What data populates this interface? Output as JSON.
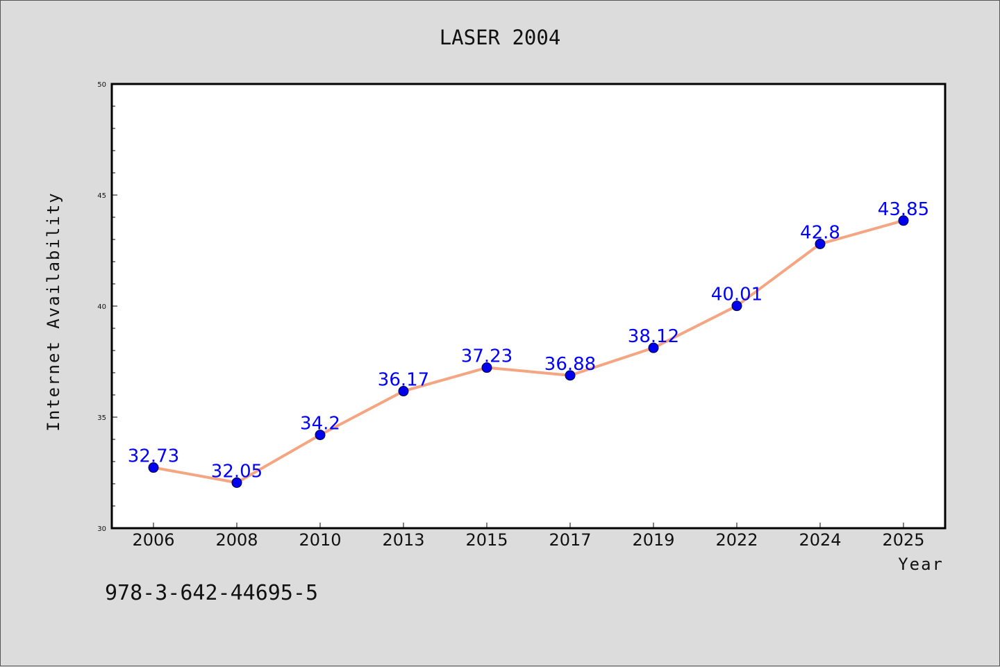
{
  "chart_data": {
    "type": "line",
    "title": "LASER 2004",
    "xlabel": "Year",
    "ylabel": "Internet Availability",
    "categories": [
      "2006",
      "2008",
      "2010",
      "2013",
      "2015",
      "2017",
      "2019",
      "2022",
      "2024",
      "2025"
    ],
    "series": [
      {
        "values": [
          32.73,
          32.05,
          34.2,
          36.17,
          37.23,
          36.88,
          38.12,
          40.01,
          42.8,
          43.85
        ],
        "data_labels": [
          "32.73",
          "32.05",
          "34.2",
          "36.17",
          "37.23",
          "36.88",
          "38.12",
          "40.01",
          "42.8",
          "43.85"
        ],
        "line_color": "#f4a582",
        "marker_color": "#0000ee"
      }
    ],
    "ylim": [
      30,
      50
    ],
    "yticks": [
      "30",
      "35",
      "40",
      "45",
      "50"
    ],
    "grid": false,
    "label_color": "#0000ff"
  },
  "footer": {
    "text": "978-3-642-44695-5"
  },
  "colors": {
    "background": "#dcdcdc",
    "plot_background": "#ffffff"
  }
}
